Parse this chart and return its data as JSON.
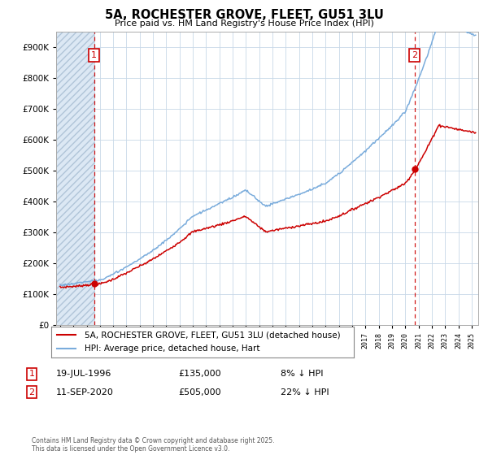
{
  "title": "5A, ROCHESTER GROVE, FLEET, GU51 3LU",
  "subtitle": "Price paid vs. HM Land Registry's House Price Index (HPI)",
  "ytick_values": [
    0,
    100000,
    200000,
    300000,
    400000,
    500000,
    600000,
    700000,
    800000,
    900000
  ],
  "ylim": [
    0,
    950000
  ],
  "xlim_start": 1993.7,
  "xlim_end": 2025.5,
  "sale1_year": 1996.55,
  "sale1_price": 135000,
  "sale1_label": "1",
  "sale2_year": 2020.7,
  "sale2_price": 505000,
  "sale2_label": "2",
  "legend_line1": "5A, ROCHESTER GROVE, FLEET, GU51 3LU (detached house)",
  "legend_line2": "HPI: Average price, detached house, Hart",
  "footer": "Contains HM Land Registry data © Crown copyright and database right 2025.\nThis data is licensed under the Open Government Licence v3.0.",
  "red_color": "#cc0000",
  "blue_color": "#7aacdc",
  "grid_color": "#c8d8e8",
  "hatch_bg": "#dce8f4",
  "background_color": "#ffffff"
}
